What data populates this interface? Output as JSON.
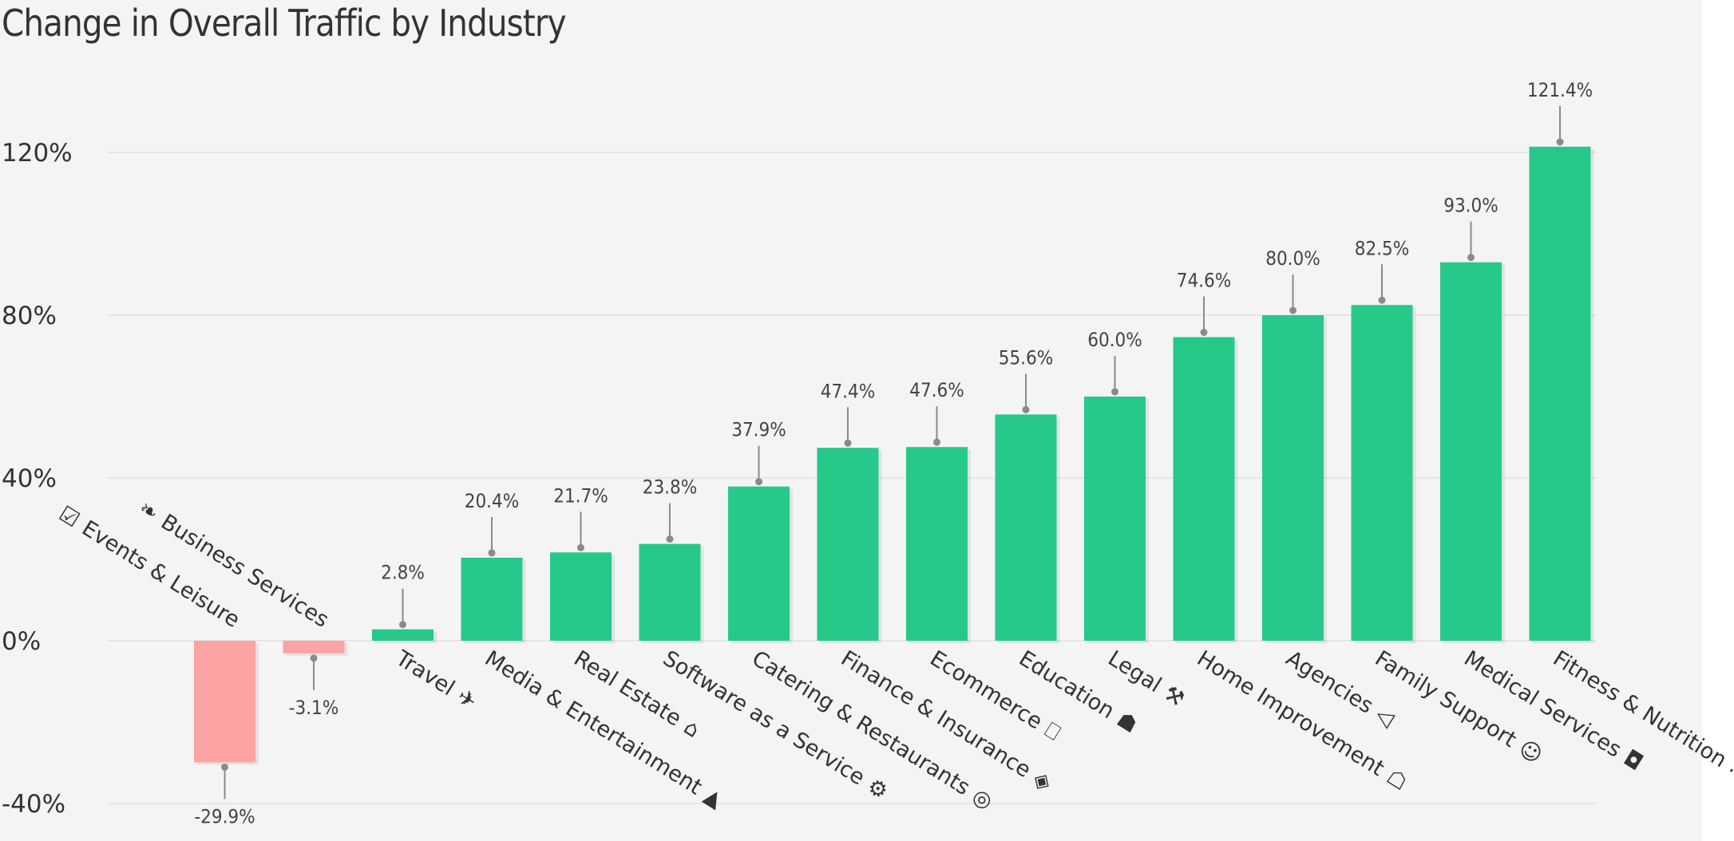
{
  "chart_data": {
    "type": "bar",
    "title": "Change in Overall Traffic by Industry",
    "categories": [
      "Events & Leisure",
      "Business Services",
      "Travel",
      "Media & Entertainment",
      "Real Estate",
      "Software as a Service",
      "Catering & Restaurants",
      "Finance & Insurance",
      "Ecommerce",
      "Education",
      "Legal",
      "Home Improvement",
      "Agencies",
      "Family Support",
      "Medical Services",
      "Fitness & Nutrition"
    ],
    "category_icons": [
      "calendar-check-icon",
      "handshake-icon",
      "airplane-icon",
      "play-circle-icon",
      "house-icon",
      "gear-icon",
      "cookie-icon",
      "dollar-shield-icon",
      "cart-icon",
      "book-icon",
      "gavel-icon",
      "sofa-icon",
      "megaphone-icon",
      "family-icon",
      "pill-icon",
      "footprints-icon"
    ],
    "values": [
      -29.9,
      -3.1,
      2.8,
      20.4,
      21.7,
      23.8,
      37.9,
      47.4,
      47.6,
      55.6,
      60.0,
      74.6,
      80.0,
      82.5,
      93.0,
      121.4
    ],
    "labels": [
      "-29.9%",
      "-3.1%",
      "2.8%",
      "20.4%",
      "21.7%",
      "23.8%",
      "37.9%",
      "47.4%",
      "47.6%",
      "55.6%",
      "60.0%",
      "74.6%",
      "80.0%",
      "82.5%",
      "93.0%",
      "121.4%"
    ],
    "yticks": [
      -40,
      0,
      40,
      80,
      120
    ],
    "ytick_labels": [
      "-40%",
      "0%",
      "40%",
      "80%",
      "120%"
    ],
    "ylim": [
      -40,
      120
    ],
    "grid": true,
    "colors": {
      "positive": "#26c98a",
      "negative": "#fca3a3",
      "leader": "#8a8a8a",
      "grid": "#e2e2e2"
    }
  }
}
